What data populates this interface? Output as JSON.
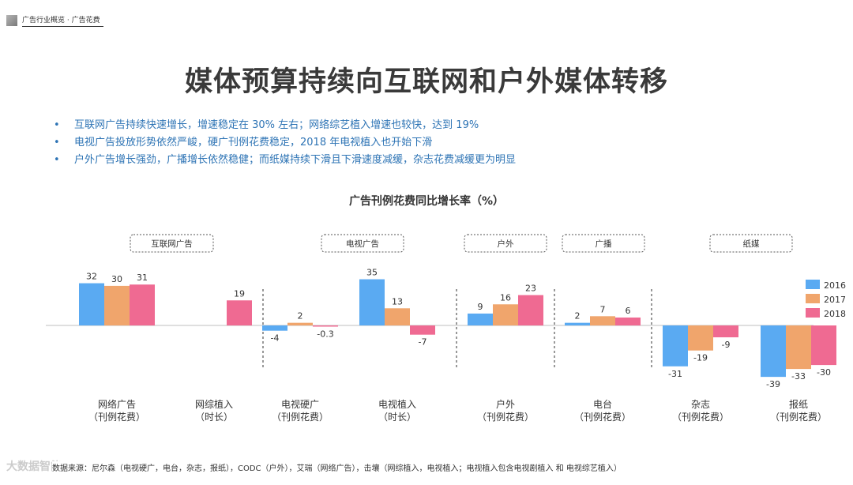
{
  "header": {
    "text": "广告行业概览 · 广告花费"
  },
  "title": "媒体预算持续向互联网和户外媒体转移",
  "bullets": [
    "互联网广告持续快速增长，增速稳定在 30% 左右；网络综艺植入增速也较快，达到 19%",
    "电视广告投放形势依然严峻，硬广刊例花费稳定，2018 年电视植入也开始下滑",
    "户外广告增长强劲，广播增长依然稳健；而纸媒持续下滑且下滑速度减缓，杂志花费减缓更为明显"
  ],
  "chart_data": {
    "type": "bar",
    "title": "广告刊例花费同比增长率（%）",
    "categories": [
      "网络广告\n（刊例花费）",
      "网综植入\n（时长）",
      "电视硬广\n（刊例花费）",
      "电视植入\n（时长）",
      "户外\n（刊例花费）",
      "电台\n（刊例花费）",
      "杂志\n（刊例花费）",
      "报纸\n（刊例花费）"
    ],
    "series": [
      {
        "name": "2016",
        "color": "#5aaaf2",
        "values": [
          32,
          null,
          -4,
          35,
          9,
          2,
          -31,
          -39
        ]
      },
      {
        "name": "2017",
        "color": "#f0a56c",
        "values": [
          30,
          null,
          2,
          13,
          16,
          7,
          -19,
          -33
        ]
      },
      {
        "name": "2018",
        "color": "#ef6a92",
        "values": [
          31,
          19,
          -0.3,
          -7,
          23,
          6,
          -9,
          -30
        ]
      }
    ],
    "value_labels": [
      [
        "32",
        "30",
        "31"
      ],
      [
        "",
        "",
        "19"
      ],
      [
        "-4",
        "2",
        "-0.3"
      ],
      [
        "35",
        "13",
        "-7"
      ],
      [
        "9",
        "16",
        "23"
      ],
      [
        "2",
        "7",
        "6"
      ],
      [
        "-31",
        "-19",
        "-9"
      ],
      [
        "-39",
        "-33",
        "-30"
      ]
    ],
    "groups": [
      {
        "label": "互联网广告",
        "categories": [
          0,
          1
        ]
      },
      {
        "label": "电视广告",
        "categories": [
          2,
          3
        ]
      },
      {
        "label": "户外",
        "categories": [
          4
        ]
      },
      {
        "label": "广播",
        "categories": [
          5
        ]
      },
      {
        "label": "纸媒",
        "categories": [
          6,
          7
        ]
      }
    ],
    "ylim": [
      -40,
      36
    ],
    "legend_position": "right",
    "grid": false
  },
  "footer": "数据来源：尼尔森（电视硬广，电台，杂志，报纸），CODC（户外），艾瑞（网络广告），击壤（网综植入，电视植入；电视植入包含电视剧植入 和 电视综艺植入）",
  "watermark": "大数据智能"
}
